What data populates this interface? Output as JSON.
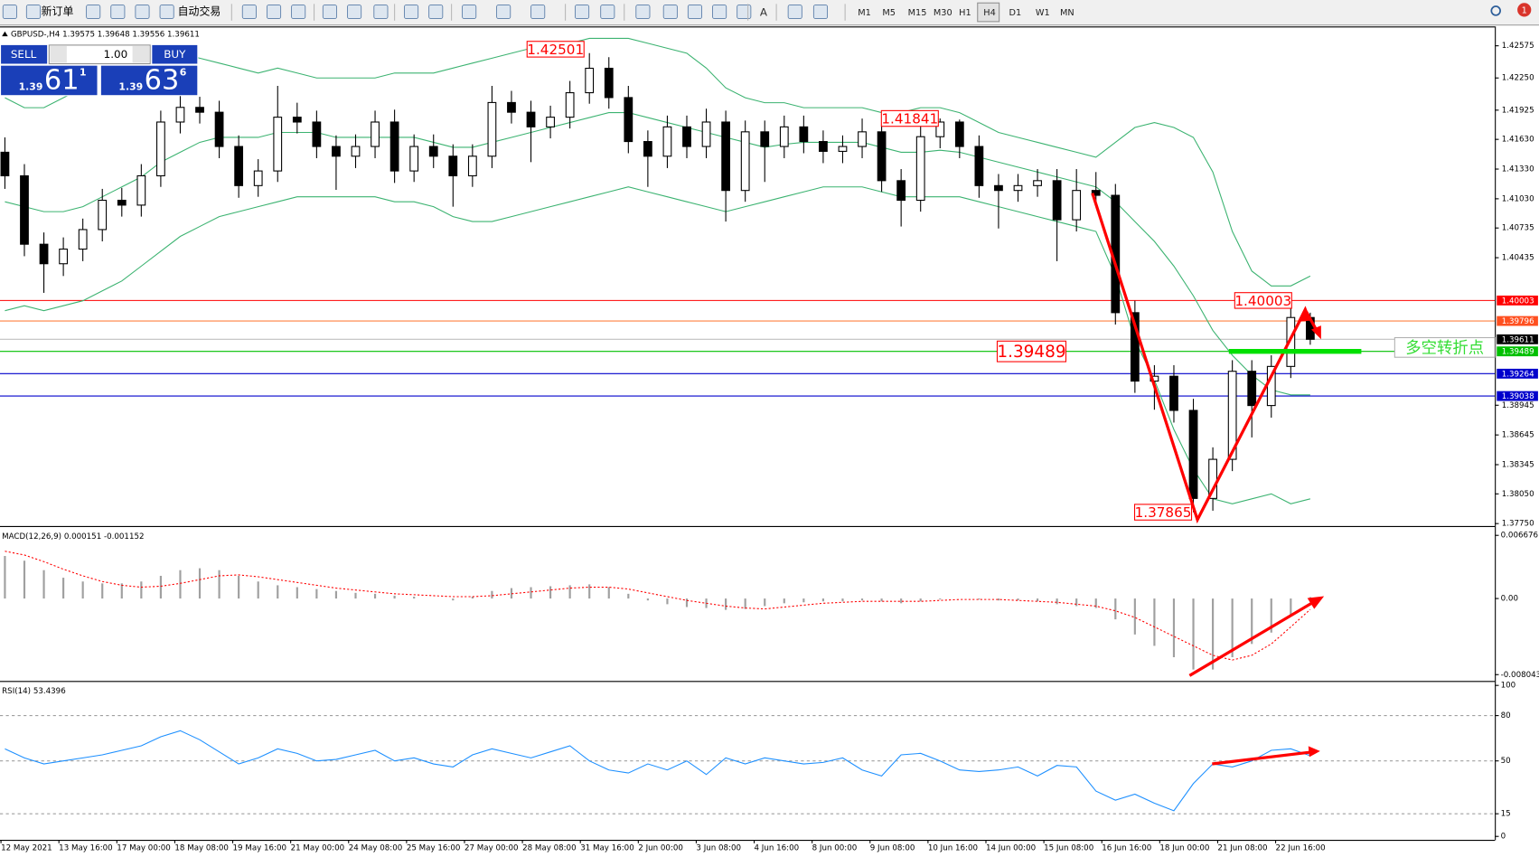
{
  "toolbar": {
    "new_order": "新订单",
    "auto_trading": "自动交易",
    "text_tool": "A",
    "timeframes": [
      "M1",
      "M5",
      "M15",
      "M30",
      "H1",
      "H4",
      "D1",
      "W1",
      "MN"
    ],
    "active": "H4",
    "badge": "1"
  },
  "trade_panel": {
    "sell": "SELL",
    "buy": "BUY",
    "lots": "1.00",
    "sell_prefix": "1.39",
    "sell_big": "61",
    "sell_sup": "1",
    "buy_prefix": "1.39",
    "buy_big": "63",
    "buy_sup": "6"
  },
  "chart_data": [
    {
      "type": "candlestick",
      "title": "GBPUSD-,H4 1.39575 1.39648 1.39556 1.39611",
      "up_color": "#ffffff",
      "down_color": "#000000",
      "open": [
        1.415,
        1.41262,
        1.40571,
        1.40374,
        1.40522,
        1.40719,
        1.41015,
        1.40966,
        1.41262,
        1.41805,
        1.41953,
        1.41904,
        1.41558,
        1.41163,
        1.41311,
        1.41854,
        1.41805,
        1.41558,
        1.4146,
        1.41558,
        1.41805,
        1.41311,
        1.41558,
        1.4146,
        1.41262,
        1.4146,
        1.42002,
        1.41904,
        1.41756,
        1.41854,
        1.42101,
        1.42348,
        1.42052,
        1.41608,
        1.4146,
        1.41756,
        1.41558,
        1.41805,
        1.41114,
        1.41706,
        1.41558,
        1.41756,
        1.41608,
        1.41509,
        1.41558,
        1.41706,
        1.41213,
        1.41015,
        1.41657,
        1.41805,
        1.41558,
        1.41163,
        1.41114,
        1.41163,
        1.41213,
        1.40818,
        1.41114,
        1.41065,
        1.3988,
        1.39189,
        1.39238,
        1.38893,
        1.38004,
        1.38399,
        1.39288,
        1.38942,
        1.39337,
        1.39831
      ],
      "high": [
        1.4165,
        1.4138,
        1.4069,
        1.4064,
        1.4083,
        1.4113,
        1.4114,
        1.4138,
        1.4192,
        1.4207,
        1.4206,
        1.4202,
        1.4167,
        1.4143,
        1.4217,
        1.42,
        1.4192,
        1.4167,
        1.4168,
        1.4192,
        1.4193,
        1.4168,
        1.4168,
        1.4158,
        1.4158,
        1.4217,
        1.4212,
        1.4202,
        1.4197,
        1.4222,
        1.42501,
        1.4246,
        1.4217,
        1.4172,
        1.4187,
        1.4187,
        1.4194,
        1.4192,
        1.4182,
        1.4182,
        1.4187,
        1.4187,
        1.4172,
        1.4167,
        1.4184,
        1.4182,
        1.4133,
        1.4177,
        1.41841,
        1.4183,
        1.4167,
        1.4128,
        1.4128,
        1.4133,
        1.4133,
        1.4133,
        1.413,
        1.4118,
        1.4,
        1.3935,
        1.3935,
        1.3901,
        1.3852,
        1.394,
        1.394,
        1.3945,
        1.40003,
        1.3988
      ],
      "low": [
        1.4113,
        1.4045,
        1.4008,
        1.4025,
        1.404,
        1.406,
        1.4085,
        1.4085,
        1.4115,
        1.4169,
        1.4179,
        1.4144,
        1.4104,
        1.4105,
        1.412,
        1.4169,
        1.4144,
        1.4112,
        1.4134,
        1.4144,
        1.4119,
        1.412,
        1.4134,
        1.4095,
        1.4115,
        1.4134,
        1.4179,
        1.414,
        1.4164,
        1.4174,
        1.4199,
        1.4194,
        1.4149,
        1.4115,
        1.4134,
        1.4144,
        1.4144,
        1.408,
        1.41,
        1.412,
        1.4144,
        1.4149,
        1.4139,
        1.4139,
        1.4144,
        1.411,
        1.4075,
        1.409,
        1.4154,
        1.4144,
        1.4104,
        1.4073,
        1.41,
        1.4105,
        1.404,
        1.407,
        1.4095,
        1.3976,
        1.3907,
        1.389,
        1.3877,
        1.37865,
        1.3788,
        1.3828,
        1.3862,
        1.3882,
        1.3922,
        1.39556
      ],
      "close": [
        1.41262,
        1.40571,
        1.40374,
        1.40522,
        1.40719,
        1.41015,
        1.40966,
        1.41262,
        1.41805,
        1.41953,
        1.41904,
        1.41558,
        1.41163,
        1.41311,
        1.41854,
        1.41805,
        1.41558,
        1.4146,
        1.41558,
        1.41805,
        1.41311,
        1.41558,
        1.4146,
        1.41262,
        1.4146,
        1.42002,
        1.41904,
        1.41756,
        1.41854,
        1.42101,
        1.42348,
        1.42052,
        1.41608,
        1.4146,
        1.41756,
        1.41558,
        1.41805,
        1.41114,
        1.41706,
        1.41558,
        1.41756,
        1.41608,
        1.41509,
        1.41558,
        1.41706,
        1.41213,
        1.41015,
        1.41657,
        1.41805,
        1.41558,
        1.41163,
        1.41114,
        1.41163,
        1.41213,
        1.40818,
        1.41114,
        1.41065,
        1.3988,
        1.39189,
        1.39238,
        1.38893,
        1.38004,
        1.38399,
        1.39288,
        1.38942,
        1.39337,
        1.39831,
        1.39611
      ],
      "bands": {
        "color": "#3cb371",
        "upper": [
          1.4205,
          1.4195,
          1.4195,
          1.4205,
          1.4215,
          1.4225,
          1.4235,
          1.424,
          1.4245,
          1.425,
          1.4245,
          1.424,
          1.4235,
          1.423,
          1.4235,
          1.423,
          1.4225,
          1.4225,
          1.4225,
          1.4225,
          1.423,
          1.423,
          1.423,
          1.4235,
          1.424,
          1.4245,
          1.425,
          1.4255,
          1.4255,
          1.426,
          1.4265,
          1.4265,
          1.4265,
          1.426,
          1.4255,
          1.425,
          1.4235,
          1.4215,
          1.4205,
          1.42,
          1.42,
          1.4195,
          1.4195,
          1.4195,
          1.4195,
          1.419,
          1.419,
          1.4195,
          1.4195,
          1.419,
          1.418,
          1.417,
          1.4165,
          1.416,
          1.4155,
          1.415,
          1.4145,
          1.416,
          1.4175,
          1.418,
          1.4175,
          1.4165,
          1.413,
          1.407,
          1.403,
          1.4015,
          1.4015,
          1.4025
        ],
        "middle": [
          1.41,
          1.4095,
          1.409,
          1.409,
          1.4095,
          1.4105,
          1.4115,
          1.4125,
          1.414,
          1.415,
          1.416,
          1.4165,
          1.4165,
          1.4165,
          1.417,
          1.417,
          1.417,
          1.4165,
          1.4165,
          1.4165,
          1.4165,
          1.4165,
          1.416,
          1.4155,
          1.4155,
          1.416,
          1.4165,
          1.417,
          1.4175,
          1.418,
          1.4185,
          1.419,
          1.419,
          1.4185,
          1.418,
          1.4175,
          1.417,
          1.4165,
          1.416,
          1.4155,
          1.4158,
          1.416,
          1.416,
          1.416,
          1.416,
          1.4155,
          1.415,
          1.415,
          1.4152,
          1.415,
          1.4145,
          1.414,
          1.4135,
          1.413,
          1.4125,
          1.412,
          1.4115,
          1.41,
          1.408,
          1.406,
          1.4035,
          1.4005,
          1.397,
          1.3945,
          1.3925,
          1.391,
          1.3905,
          1.3905
        ],
        "lower": [
          1.399,
          1.3995,
          1.399,
          1.3995,
          1.4,
          1.401,
          1.402,
          1.4035,
          1.405,
          1.4065,
          1.4075,
          1.4085,
          1.409,
          1.4095,
          1.41,
          1.4105,
          1.4105,
          1.4105,
          1.4105,
          1.4105,
          1.41,
          1.41,
          1.4095,
          1.4085,
          1.408,
          1.408,
          1.4085,
          1.409,
          1.4095,
          1.41,
          1.4105,
          1.411,
          1.4115,
          1.411,
          1.4105,
          1.41,
          1.4095,
          1.409,
          1.4095,
          1.41,
          1.4105,
          1.411,
          1.4115,
          1.4115,
          1.4115,
          1.411,
          1.4105,
          1.4105,
          1.4105,
          1.4105,
          1.41,
          1.4095,
          1.409,
          1.4085,
          1.408,
          1.4075,
          1.407,
          1.4025,
          1.396,
          1.392,
          1.387,
          1.383,
          1.38,
          1.3795,
          1.38,
          1.3805,
          1.3795,
          1.38
        ]
      },
      "ylim": [
        1.3772,
        1.4277
      ],
      "yticks": [
        1.42575,
        {
          "value": 1.4225,
          "label": "1.42250"
        },
        1.41925,
        {
          "value": 1.4163,
          "label": "1.41630"
        },
        {
          "value": 1.4133,
          "label": "1.41330"
        },
        {
          "value": 1.4103,
          "label": "1.41030"
        },
        1.40735,
        1.40435,
        1.38945,
        1.38645,
        1.38345,
        {
          "value": 1.3805,
          "label": "1.38050"
        },
        {
          "value": 1.3775,
          "label": "1.37750"
        }
      ],
      "levels": [
        {
          "value": 1.40003,
          "color": "#ff0000",
          "label_color": "#ff0000"
        },
        {
          "value": 1.39796,
          "color": "#ff8040",
          "label_color": "#ff5020"
        },
        {
          "value": 1.39611,
          "color": "#c0c0c0",
          "label_color": "#000000"
        },
        {
          "value": 1.39489,
          "color": "#00c000",
          "label_color": "#00c000"
        },
        {
          "value": 1.39264,
          "color": "#0000cc",
          "label_color": "#0000cc"
        },
        {
          "value": 1.39038,
          "color": "#0000cc",
          "label_color": "#0000cc"
        }
      ],
      "annotations": [
        1.42501,
        1.41841,
        1.37865,
        1.40003,
        1.39489
      ],
      "note": "多空转折点",
      "x_labels": [
        "12 May 2021",
        "13 May 16:00",
        "17 May 00:00",
        "18 May 08:00",
        "19 May 16:00",
        "21 May 00:00",
        "24 May 08:00",
        "25 May 16:00",
        "27 May 00:00",
        "28 May 08:00",
        "31 May 16:00",
        "2 Jun 00:00",
        "3 Jun 08:00",
        "4 Jun 16:00",
        "8 Jun 00:00",
        "9 Jun 08:00",
        "10 Jun 16:00",
        "14 Jun 00:00",
        "15 Jun 08:00",
        "16 Jun 16:00",
        "18 Jun 00:00",
        "21 Jun 08:00",
        "22 Jun 16:00"
      ]
    },
    {
      "type": "macd",
      "title": "MACD(12,26,9) 0.000151 -0.001152",
      "hist_color": "#a0a0a0",
      "signal_color": "#ff0000",
      "values": [
        0.0045,
        0.004,
        0.003,
        0.0022,
        0.0018,
        0.0016,
        0.0016,
        0.0018,
        0.0024,
        0.003,
        0.0032,
        0.003,
        0.0024,
        0.0018,
        0.0014,
        0.0012,
        0.001,
        0.0008,
        0.0006,
        0.0005,
        0.0003,
        0.0002,
        0,
        -0.0002,
        0.0002,
        0.0008,
        0.0011,
        0.0012,
        0.0013,
        0.0014,
        0.0015,
        0.0012,
        0.0005,
        -0.0002,
        -0.0006,
        -0.0009,
        -0.001,
        -0.0012,
        -0.0011,
        -0.0008,
        -0.0005,
        -0.0004,
        -0.0003,
        -0.0003,
        -0.0002,
        -0.0003,
        -0.0005,
        -0.0003,
        -0.0001,
        0,
        -0.0001,
        -0.0002,
        -0.0002,
        -0.0003,
        -0.0006,
        -0.0008,
        -0.001,
        -0.0022,
        -0.0038,
        -0.005,
        -0.0062,
        -0.0075,
        -0.0075,
        -0.0062,
        -0.0048,
        -0.0036,
        -0.0018,
        0.000151
      ],
      "signal": [
        0.005,
        0.0046,
        0.0039,
        0.0031,
        0.0024,
        0.0018,
        0.0014,
        0.0012,
        0.0013,
        0.0016,
        0.002,
        0.0024,
        0.0025,
        0.0023,
        0.002,
        0.0017,
        0.0014,
        0.0011,
        0.0009,
        0.0007,
        0.0005,
        0.0004,
        0.0003,
        0.0002,
        0.0002,
        0.0003,
        0.0005,
        0.0007,
        0.0009,
        0.0011,
        0.0012,
        0.0012,
        0.001,
        0.0006,
        0.0002,
        -0.0002,
        -0.0005,
        -0.0008,
        -0.001,
        -0.0011,
        -0.0009,
        -0.0007,
        -0.0005,
        -0.0004,
        -0.0003,
        -0.0003,
        -0.0003,
        -0.0003,
        -0.0002,
        -0.0001,
        -0.0001,
        -0.0001,
        -0.0002,
        -0.0003,
        -0.0004,
        -0.0006,
        -0.0008,
        -0.0013,
        -0.002,
        -0.003,
        -0.004,
        -0.005,
        -0.006,
        -0.0065,
        -0.006,
        -0.0048,
        -0.003,
        -0.001152
      ],
      "ylim": [
        -0.00856,
        0.0074
      ],
      "yticks": [
        0.006676,
        {
          "value": 0,
          "label": "0.00"
        },
        -0.008043
      ]
    },
    {
      "type": "line",
      "title": "RSI(14) 53.4396",
      "color": "#1e90ff",
      "values": [
        58,
        52,
        48,
        50,
        52,
        54,
        57,
        60,
        66,
        70,
        64,
        56,
        48,
        52,
        58,
        55,
        50,
        51,
        54,
        57,
        50,
        52,
        48,
        46,
        54,
        58,
        55,
        52,
        56,
        60,
        50,
        44,
        42,
        48,
        44,
        50,
        41,
        52,
        48,
        52,
        50,
        48,
        49,
        52,
        44,
        40,
        54,
        55,
        50,
        44,
        43,
        44,
        46,
        40,
        47,
        46,
        30,
        24,
        28,
        22,
        17,
        35,
        48,
        46,
        50,
        57,
        58,
        53.4396
      ],
      "ylim": [
        0,
        100
      ],
      "yticks": [
        100,
        80,
        50,
        15,
        0
      ],
      "levels": [
        80,
        50,
        15
      ]
    }
  ]
}
